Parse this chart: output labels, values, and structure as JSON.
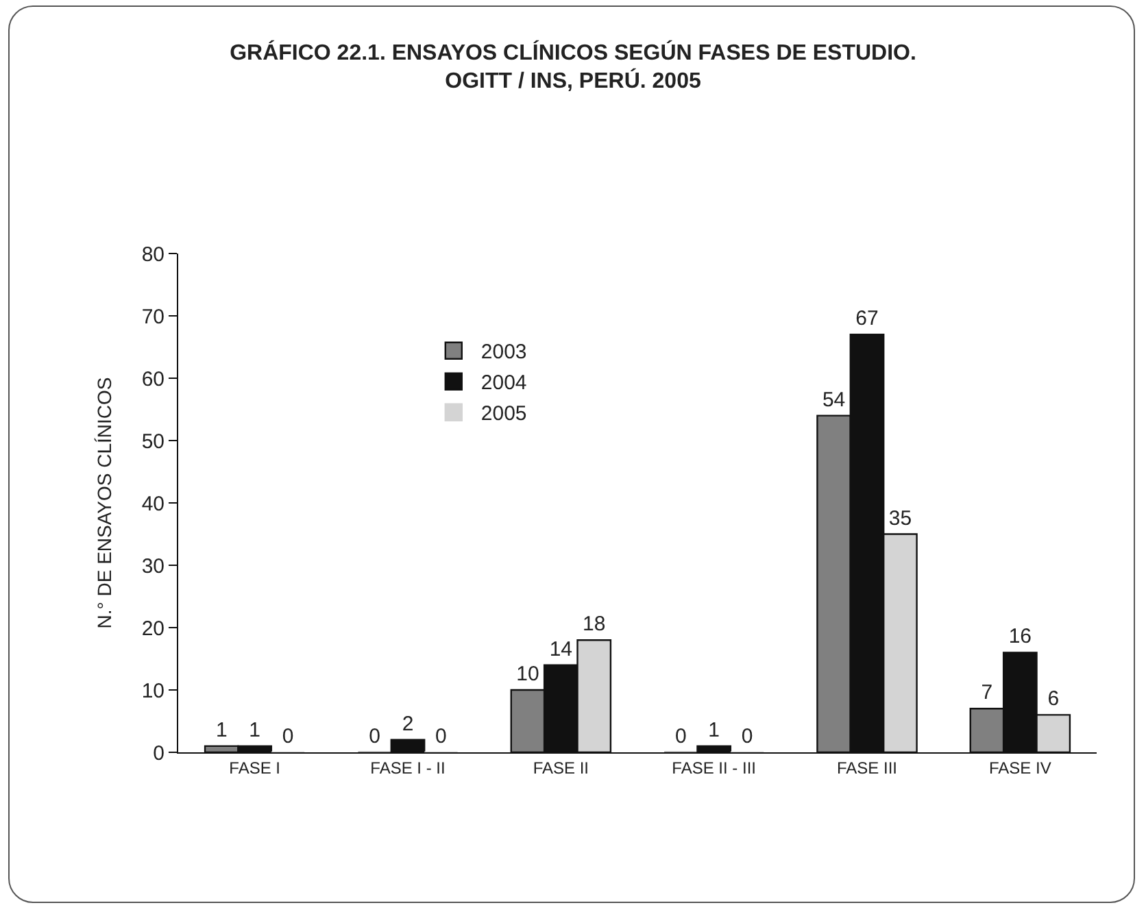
{
  "chart_data": {
    "type": "bar",
    "title": "GRÁFICO 22.1. ENSAYOS CLÍNICOS SEGÚN FASES DE ESTUDIO.\nOGITT / INS, PERÚ. 2005",
    "ylabel": "N.° DE ENSAYOS CLÍNICOS",
    "categories": [
      "FASE I",
      "FASE I - II",
      "FASE II",
      "FASE II - III",
      "FASE III",
      "FASE IV"
    ],
    "series": [
      {
        "name": "2003",
        "color": "#808080",
        "values": [
          1,
          0,
          10,
          0,
          54,
          7
        ]
      },
      {
        "name": "2004",
        "color": "#111111",
        "values": [
          1,
          2,
          14,
          1,
          67,
          16
        ]
      },
      {
        "name": "2005",
        "color": "#d4d4d4",
        "values": [
          0,
          0,
          18,
          0,
          35,
          6
        ]
      }
    ],
    "ylim": [
      0,
      80
    ],
    "yticks": [
      0,
      10,
      20,
      30,
      40,
      50,
      60,
      70,
      80
    ],
    "grid": false,
    "legend": "top left",
    "data_labels": true
  }
}
